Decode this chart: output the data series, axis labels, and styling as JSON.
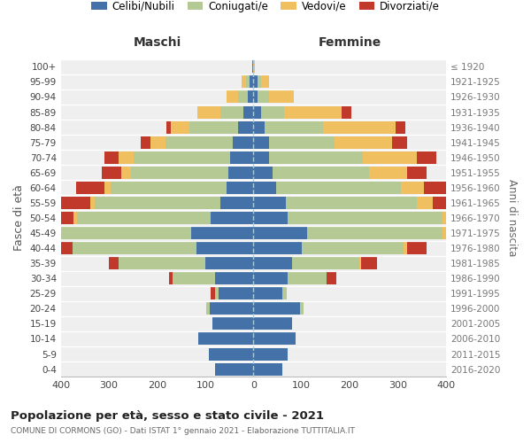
{
  "age_groups": [
    "0-4",
    "5-9",
    "10-14",
    "15-19",
    "20-24",
    "25-29",
    "30-34",
    "35-39",
    "40-44",
    "45-49",
    "50-54",
    "55-59",
    "60-64",
    "65-69",
    "70-74",
    "75-79",
    "80-84",
    "85-89",
    "90-94",
    "95-99",
    "100+"
  ],
  "birth_years": [
    "2016-2020",
    "2011-2015",
    "2006-2010",
    "2001-2005",
    "1996-2000",
    "1991-1995",
    "1986-1990",
    "1981-1985",
    "1976-1980",
    "1971-1975",
    "1966-1970",
    "1961-1965",
    "1956-1960",
    "1951-1955",
    "1946-1950",
    "1941-1945",
    "1936-1940",
    "1931-1935",
    "1926-1930",
    "1921-1925",
    "≤ 1920"
  ],
  "maschi": {
    "celibi": [
      80,
      92,
      115,
      85,
      90,
      72,
      80,
      100,
      118,
      130,
      88,
      68,
      55,
      52,
      48,
      42,
      32,
      20,
      12,
      8,
      2
    ],
    "coniugati": [
      0,
      0,
      0,
      0,
      8,
      8,
      88,
      180,
      258,
      280,
      278,
      262,
      242,
      202,
      200,
      140,
      100,
      48,
      20,
      8,
      0
    ],
    "vedovi": [
      0,
      0,
      0,
      0,
      0,
      0,
      0,
      0,
      0,
      5,
      8,
      8,
      12,
      20,
      32,
      32,
      40,
      48,
      24,
      8,
      0
    ],
    "divorziati": [
      0,
      0,
      0,
      0,
      0,
      8,
      8,
      20,
      32,
      56,
      104,
      72,
      60,
      40,
      30,
      20,
      8,
      0,
      0,
      0,
      0
    ]
  },
  "femmine": {
    "nubili": [
      60,
      72,
      88,
      80,
      96,
      60,
      72,
      80,
      100,
      112,
      72,
      68,
      48,
      40,
      32,
      32,
      24,
      16,
      8,
      8,
      0
    ],
    "coniugate": [
      0,
      0,
      0,
      0,
      8,
      10,
      80,
      140,
      212,
      280,
      320,
      272,
      258,
      200,
      196,
      136,
      120,
      48,
      24,
      8,
      0
    ],
    "vedove": [
      0,
      0,
      0,
      0,
      0,
      0,
      0,
      4,
      8,
      12,
      20,
      32,
      48,
      80,
      112,
      120,
      152,
      120,
      52,
      16,
      4
    ],
    "divorziate": [
      0,
      0,
      0,
      0,
      0,
      0,
      20,
      32,
      40,
      72,
      88,
      104,
      80,
      40,
      40,
      32,
      20,
      20,
      0,
      0,
      0
    ]
  },
  "colors": {
    "celibi": "#4472a8",
    "coniugati": "#b5c994",
    "vedovi": "#f0c060",
    "divorziati": "#c0392b"
  },
  "title": "Popolazione per età, sesso e stato civile - 2021",
  "subtitle": "COMUNE DI CORMONS (GO) - Dati ISTAT 1° gennaio 2021 - Elaborazione TUTTITALIA.IT",
  "label_maschi": "Maschi",
  "label_femmine": "Femmine",
  "ylabel_left": "Fasce di età",
  "ylabel_right": "Anni di nascita",
  "xlim": 400,
  "bg_color": "#efefef"
}
